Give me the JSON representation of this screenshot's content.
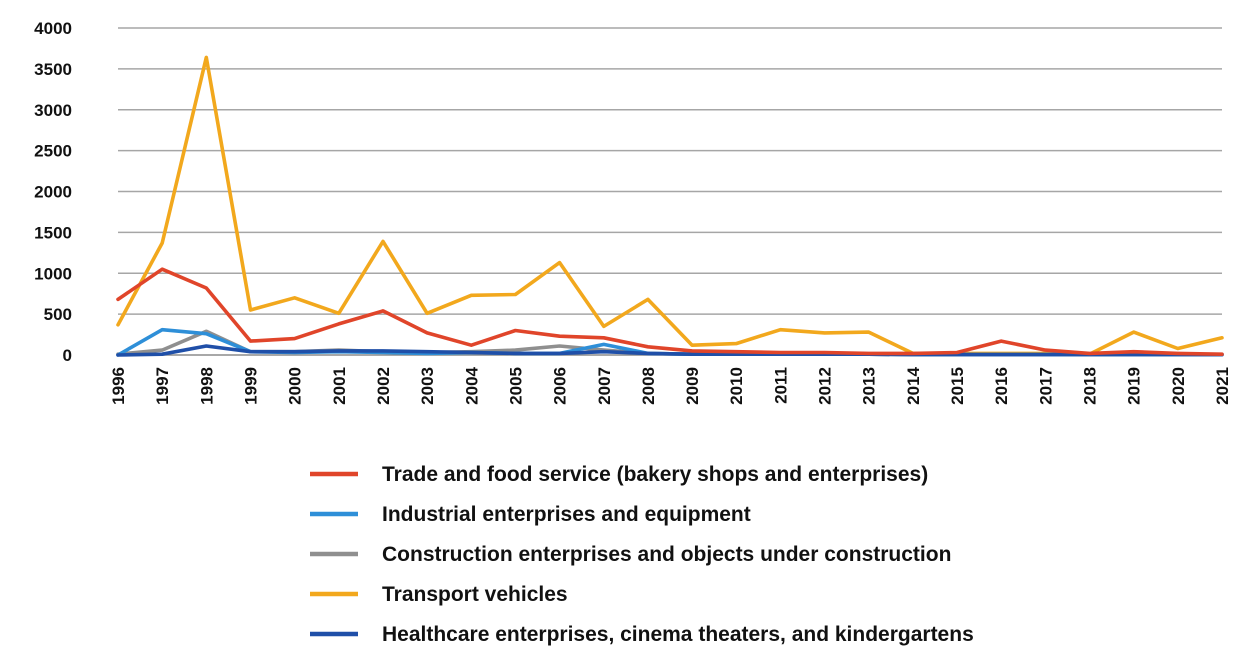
{
  "chart_data": {
    "type": "line",
    "title": "",
    "xlabel": "",
    "ylabel": "",
    "ylim": [
      0,
      4000
    ],
    "yticks": [
      0,
      500,
      1000,
      1500,
      2000,
      2500,
      3000,
      3500,
      4000
    ],
    "grid": true,
    "legend_position": "bottom",
    "categories": [
      "1996",
      "1997",
      "1998",
      "1999",
      "2000",
      "2001",
      "2002",
      "2003",
      "2004",
      "2005",
      "2006",
      "2007",
      "2008",
      "2009",
      "2010",
      "2011",
      "2012",
      "2013",
      "2014",
      "2015",
      "2016",
      "2017",
      "2018",
      "2019",
      "2020",
      "2021"
    ],
    "series": [
      {
        "name": "Trade and food service (bakery shops and enterprises)",
        "color": "#e0452a",
        "values": [
          680,
          1050,
          820,
          170,
          200,
          380,
          540,
          270,
          120,
          300,
          230,
          210,
          100,
          50,
          40,
          30,
          30,
          20,
          20,
          30,
          170,
          60,
          20,
          40,
          20,
          10
        ]
      },
      {
        "name": "Industrial enterprises and equipment",
        "color": "#2e8fd8",
        "values": [
          0,
          310,
          260,
          40,
          30,
          40,
          30,
          20,
          30,
          20,
          20,
          130,
          20,
          10,
          10,
          10,
          10,
          10,
          5,
          5,
          5,
          5,
          5,
          5,
          5,
          5
        ]
      },
      {
        "name": "Construction enterprises and objects under construction",
        "color": "#8f8f8f",
        "values": [
          10,
          60,
          290,
          40,
          40,
          60,
          40,
          30,
          40,
          60,
          110,
          60,
          20,
          10,
          10,
          10,
          10,
          10,
          5,
          5,
          5,
          5,
          5,
          5,
          5,
          5
        ]
      },
      {
        "name": "Transport vehicles",
        "color": "#f2a81d",
        "values": [
          370,
          1370,
          3640,
          550,
          700,
          510,
          1390,
          510,
          730,
          740,
          1130,
          350,
          680,
          120,
          140,
          310,
          270,
          280,
          20,
          20,
          20,
          20,
          10,
          280,
          80,
          210
        ]
      },
      {
        "name": "Healthcare enterprises, cinema theaters, and kindergartens",
        "color": "#1f4fa8",
        "values": [
          0,
          10,
          110,
          40,
          40,
          50,
          50,
          40,
          30,
          20,
          20,
          40,
          20,
          10,
          10,
          10,
          10,
          10,
          5,
          5,
          5,
          5,
          5,
          5,
          5,
          5
        ]
      }
    ]
  }
}
